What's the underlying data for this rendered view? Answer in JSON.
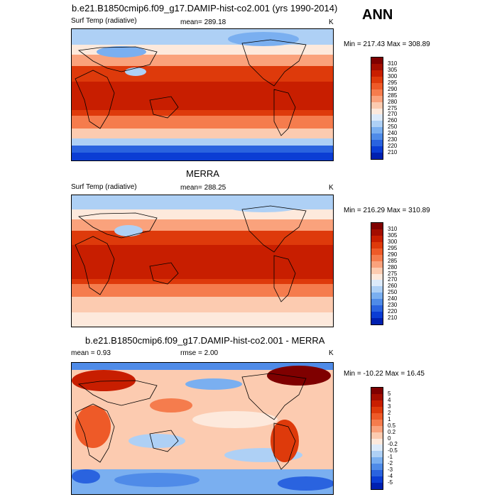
{
  "season": "ANN",
  "panels": [
    {
      "title": "b.e21.B1850cmip6.f09_g17.DAMIP-hist-co2.001 (yrs 1990-2014)",
      "left_label": "Surf Temp (radiative)",
      "center_label": "mean= 289.18",
      "right_label": "K",
      "minmax": "Min = 217.43 Max = 308.89",
      "colorbar_labels": [
        "310",
        "305",
        "300",
        "295",
        "290",
        "285",
        "280",
        "275",
        "270",
        "260",
        "250",
        "240",
        "230",
        "220",
        "210"
      ],
      "colorbar_colors": [
        "#7f0000",
        "#a30d00",
        "#c81e00",
        "#de3a0b",
        "#ee5a28",
        "#f57c4d",
        "#faa27c",
        "#fccbb0",
        "#fde9dc",
        "#dceafa",
        "#aed0f5",
        "#7aaff0",
        "#4f8be8",
        "#2a63df",
        "#0b3dd4",
        "#0020b0"
      ]
    },
    {
      "title": "MERRA",
      "left_label": "Surf Temp (radiative)",
      "center_label": "mean= 288.25",
      "right_label": "K",
      "minmax": "Min = 216.29 Max = 310.89",
      "colorbar_labels": [
        "310",
        "305",
        "300",
        "295",
        "290",
        "285",
        "280",
        "275",
        "270",
        "260",
        "250",
        "240",
        "230",
        "220",
        "210"
      ],
      "colorbar_colors": [
        "#7f0000",
        "#a30d00",
        "#c81e00",
        "#de3a0b",
        "#ee5a28",
        "#f57c4d",
        "#faa27c",
        "#fccbb0",
        "#fde9dc",
        "#dceafa",
        "#aed0f5",
        "#7aaff0",
        "#4f8be8",
        "#2a63df",
        "#0b3dd4",
        "#0020b0"
      ]
    },
    {
      "title": "b.e21.B1850cmip6.f09_g17.DAMIP-hist-co2.001 - MERRA",
      "left_label": "mean =   0.93",
      "center_label": "rmse =   2.00",
      "right_label": "K",
      "minmax": "Min = -10.22 Max =  16.45",
      "colorbar_labels": [
        "5",
        "4",
        "3",
        "2",
        "1",
        "0.5",
        "0.2",
        "0",
        "-0.2",
        "-0.5",
        "-1",
        "-2",
        "-3",
        "-4",
        "-5"
      ],
      "colorbar_colors": [
        "#7f0000",
        "#a30d00",
        "#c81e00",
        "#de3a0b",
        "#ee5a28",
        "#f57c4d",
        "#faa27c",
        "#fccbb0",
        "#fde9dc",
        "#dceafa",
        "#aed0f5",
        "#7aaff0",
        "#4f8be8",
        "#2a63df",
        "#0b3dd4",
        "#0020b0"
      ]
    }
  ]
}
